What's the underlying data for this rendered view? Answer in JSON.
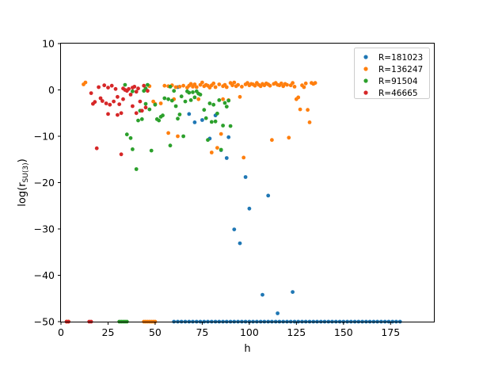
{
  "chart_data": {
    "type": "scatter",
    "title": "",
    "xlabel": "h",
    "ylabel_parts": {
      "main": "log(r",
      "sub": "SU(3)",
      "close": ")"
    },
    "xlim": [
      0,
      198
    ],
    "ylim": [
      -50,
      10
    ],
    "xticks": [
      0,
      25,
      50,
      75,
      100,
      125,
      150,
      175
    ],
    "yticks": [
      10,
      0,
      -10,
      -20,
      -30,
      -40,
      -50
    ],
    "legend_position": "top-right",
    "series": [
      {
        "name": "R=181023",
        "color": "#1f77b4",
        "points": [
          [
            62,
            0.6
          ],
          [
            68,
            -5.2
          ],
          [
            71,
            -7.0
          ],
          [
            75,
            -6.5
          ],
          [
            79,
            -10.5
          ],
          [
            82,
            -5.5
          ],
          [
            85,
            -13.0
          ],
          [
            88,
            -14.7
          ],
          [
            89,
            -10.2
          ],
          [
            92,
            -30.1
          ],
          [
            95,
            -33.1
          ],
          [
            98,
            -18.8
          ],
          [
            100,
            -25.6
          ],
          [
            110,
            -22.8
          ],
          [
            107,
            -44.2
          ],
          [
            115,
            -48.2
          ],
          [
            123,
            -43.6
          ],
          [
            60,
            -50
          ],
          [
            62,
            -50
          ],
          [
            64,
            -50
          ],
          [
            66,
            -50
          ],
          [
            68,
            -50
          ],
          [
            70,
            -50
          ],
          [
            72,
            -50
          ],
          [
            74,
            -50
          ],
          [
            76,
            -50
          ],
          [
            78,
            -50
          ],
          [
            80,
            -50
          ],
          [
            82,
            -50
          ],
          [
            84,
            -50
          ],
          [
            86,
            -50
          ],
          [
            88,
            -50
          ],
          [
            90,
            -50
          ],
          [
            92,
            -50
          ],
          [
            94,
            -50
          ],
          [
            96,
            -50
          ],
          [
            98,
            -50
          ],
          [
            100,
            -50
          ],
          [
            102,
            -50
          ],
          [
            104,
            -50
          ],
          [
            106,
            -50
          ],
          [
            108,
            -50
          ],
          [
            110,
            -50
          ],
          [
            112,
            -50
          ],
          [
            114,
            -50
          ],
          [
            116,
            -50
          ],
          [
            118,
            -50
          ],
          [
            120,
            -50
          ],
          [
            122,
            -50
          ],
          [
            124,
            -50
          ],
          [
            126,
            -50
          ],
          [
            128,
            -50
          ],
          [
            130,
            -50
          ],
          [
            132,
            -50
          ],
          [
            134,
            -50
          ],
          [
            136,
            -50
          ],
          [
            138,
            -50
          ],
          [
            140,
            -50
          ],
          [
            142,
            -50
          ],
          [
            144,
            -50
          ],
          [
            146,
            -50
          ],
          [
            148,
            -50
          ],
          [
            150,
            -50
          ],
          [
            152,
            -50
          ],
          [
            154,
            -50
          ],
          [
            156,
            -50
          ],
          [
            158,
            -50
          ],
          [
            160,
            -50
          ],
          [
            162,
            -50
          ],
          [
            164,
            -50
          ],
          [
            166,
            -50
          ],
          [
            168,
            -50
          ],
          [
            170,
            -50
          ],
          [
            172,
            -50
          ],
          [
            174,
            -50
          ],
          [
            176,
            -50
          ],
          [
            178,
            -50
          ],
          [
            180,
            -50
          ]
        ]
      },
      {
        "name": "R=136247",
        "color": "#ff7f0e",
        "points": [
          [
            12,
            1.2
          ],
          [
            13,
            1.6
          ],
          [
            47,
            0.8
          ],
          [
            49,
            -2.5
          ],
          [
            50,
            -3.0
          ],
          [
            53,
            -2.9
          ],
          [
            55,
            0.9
          ],
          [
            57,
            0.8
          ],
          [
            57,
            -9.3
          ],
          [
            59,
            1.0
          ],
          [
            60,
            -2.0
          ],
          [
            61,
            0.6
          ],
          [
            62,
            -10.0
          ],
          [
            63,
            0.7
          ],
          [
            65,
            0.9
          ],
          [
            67,
            0.5
          ],
          [
            68,
            0.9
          ],
          [
            69,
            1.3
          ],
          [
            70,
            0.7
          ],
          [
            71,
            1.2
          ],
          [
            72,
            0.6
          ],
          [
            73,
            -2.0
          ],
          [
            74,
            1.1
          ],
          [
            75,
            1.6
          ],
          [
            76,
            0.8
          ],
          [
            77,
            1.1
          ],
          [
            78,
            0.9
          ],
          [
            79,
            0.5
          ],
          [
            80,
            1.0
          ],
          [
            80,
            -13.5
          ],
          [
            81,
            1.4
          ],
          [
            82,
            0.6
          ],
          [
            83,
            -12.5
          ],
          [
            84,
            1.2
          ],
          [
            85,
            -9.5
          ],
          [
            86,
            0.8
          ],
          [
            86,
            -2.0
          ],
          [
            87,
            1.1
          ],
          [
            88,
            0.6
          ],
          [
            89,
            -2.2
          ],
          [
            90,
            1.5
          ],
          [
            91,
            1.0
          ],
          [
            92,
            1.6
          ],
          [
            93,
            0.8
          ],
          [
            94,
            1.1
          ],
          [
            95,
            -1.5
          ],
          [
            96,
            0.7
          ],
          [
            97,
            -14.6
          ],
          [
            98,
            1.2
          ],
          [
            99,
            1.5
          ],
          [
            100,
            1.0
          ],
          [
            101,
            1.3
          ],
          [
            102,
            1.2
          ],
          [
            103,
            0.9
          ],
          [
            104,
            1.5
          ],
          [
            105,
            1.1
          ],
          [
            106,
            0.8
          ],
          [
            107,
            1.3
          ],
          [
            108,
            1.0
          ],
          [
            109,
            1.4
          ],
          [
            110,
            1.2
          ],
          [
            111,
            0.9
          ],
          [
            112,
            -10.8
          ],
          [
            113,
            1.3
          ],
          [
            114,
            1.5
          ],
          [
            115,
            1.1
          ],
          [
            116,
            1.0
          ],
          [
            117,
            1.4
          ],
          [
            118,
            0.8
          ],
          [
            119,
            1.3
          ],
          [
            120,
            1.1
          ],
          [
            121,
            -10.3
          ],
          [
            122,
            1.0
          ],
          [
            123,
            1.5
          ],
          [
            124,
            0.7
          ],
          [
            125,
            -2.0
          ],
          [
            126,
            -1.6
          ],
          [
            127,
            -4.2
          ],
          [
            128,
            1.0
          ],
          [
            129,
            0.6
          ],
          [
            130,
            1.4
          ],
          [
            131,
            -4.3
          ],
          [
            132,
            -7.0
          ],
          [
            133,
            1.5
          ],
          [
            134,
            1.3
          ],
          [
            135,
            1.5
          ],
          [
            3,
            -50
          ],
          [
            4,
            -50
          ],
          [
            44,
            -50
          ],
          [
            45,
            -50
          ],
          [
            46,
            -50
          ],
          [
            47,
            -50
          ],
          [
            48,
            -50
          ],
          [
            49,
            -50
          ],
          [
            50,
            -50
          ]
        ]
      },
      {
        "name": "R=91504",
        "color": "#2ca02c",
        "points": [
          [
            34,
            1.1
          ],
          [
            35,
            -9.6
          ],
          [
            37,
            -10.4
          ],
          [
            38,
            -12.8
          ],
          [
            38,
            -0.3
          ],
          [
            40,
            -17.1
          ],
          [
            41,
            -6.6
          ],
          [
            42,
            -4.5
          ],
          [
            43,
            -6.3
          ],
          [
            44,
            -0.2
          ],
          [
            45,
            0.3
          ],
          [
            45,
            -3.0
          ],
          [
            46,
            1.1
          ],
          [
            47,
            -4.2
          ],
          [
            48,
            -13.1
          ],
          [
            50,
            -3.2
          ],
          [
            51,
            -6.3
          ],
          [
            52,
            -6.6
          ],
          [
            53,
            -5.8
          ],
          [
            54,
            -5.5
          ],
          [
            55,
            -1.8
          ],
          [
            57,
            -2.0
          ],
          [
            58,
            -12.0
          ],
          [
            58,
            0.7
          ],
          [
            59,
            -2.3
          ],
          [
            60,
            -0.2
          ],
          [
            61,
            -3.5
          ],
          [
            62,
            -6.2
          ],
          [
            63,
            -5.3
          ],
          [
            64,
            -1.4
          ],
          [
            65,
            -10.0
          ],
          [
            66,
            -2.5
          ],
          [
            67,
            -0.3
          ],
          [
            68,
            -0.6
          ],
          [
            69,
            -2.2
          ],
          [
            70,
            -0.5
          ],
          [
            71,
            -1.6
          ],
          [
            72,
            -0.3
          ],
          [
            73,
            -0.8
          ],
          [
            74,
            -1.0
          ],
          [
            76,
            -4.3
          ],
          [
            77,
            -6.1
          ],
          [
            78,
            -10.8
          ],
          [
            79,
            -2.9
          ],
          [
            80,
            -6.9
          ],
          [
            81,
            -3.2
          ],
          [
            82,
            -6.8
          ],
          [
            83,
            -5.1
          ],
          [
            84,
            -2.2
          ],
          [
            85,
            -12.9
          ],
          [
            86,
            -7.7
          ],
          [
            87,
            -2.8
          ],
          [
            88,
            -3.6
          ],
          [
            89,
            -2.3
          ],
          [
            90,
            -7.8
          ],
          [
            31,
            -50
          ],
          [
            32,
            -50
          ],
          [
            33,
            -50
          ],
          [
            34,
            -50
          ],
          [
            35,
            -50
          ]
        ]
      },
      {
        "name": "R=46665",
        "color": "#d62728",
        "points": [
          [
            16,
            -0.7
          ],
          [
            17,
            -3.0
          ],
          [
            18,
            -2.6
          ],
          [
            19,
            -12.6
          ],
          [
            20,
            0.6
          ],
          [
            21,
            -1.8
          ],
          [
            22,
            -2.4
          ],
          [
            23,
            1.0
          ],
          [
            24,
            -2.9
          ],
          [
            25,
            0.5
          ],
          [
            25,
            -5.2
          ],
          [
            26,
            -3.2
          ],
          [
            27,
            0.9
          ],
          [
            28,
            -2.5
          ],
          [
            29,
            0.2
          ],
          [
            30,
            -1.5
          ],
          [
            30,
            -5.4
          ],
          [
            31,
            -3.1
          ],
          [
            32,
            -5.0
          ],
          [
            32,
            -13.9
          ],
          [
            33,
            0.3
          ],
          [
            33,
            -2.0
          ],
          [
            34,
            0.0
          ],
          [
            35,
            -0.2
          ],
          [
            36,
            0.2
          ],
          [
            37,
            -1.0
          ],
          [
            38,
            -3.5
          ],
          [
            38,
            0.5
          ],
          [
            39,
            0.7
          ],
          [
            40,
            -0.4
          ],
          [
            40,
            -5.0
          ],
          [
            41,
            0.3
          ],
          [
            42,
            -2.5
          ],
          [
            43,
            -4.5
          ],
          [
            44,
            0.9
          ],
          [
            45,
            -3.8
          ],
          [
            46,
            -0.2
          ],
          [
            3,
            -50
          ],
          [
            4,
            -50
          ],
          [
            15,
            -50
          ],
          [
            16,
            -50
          ]
        ]
      }
    ]
  }
}
